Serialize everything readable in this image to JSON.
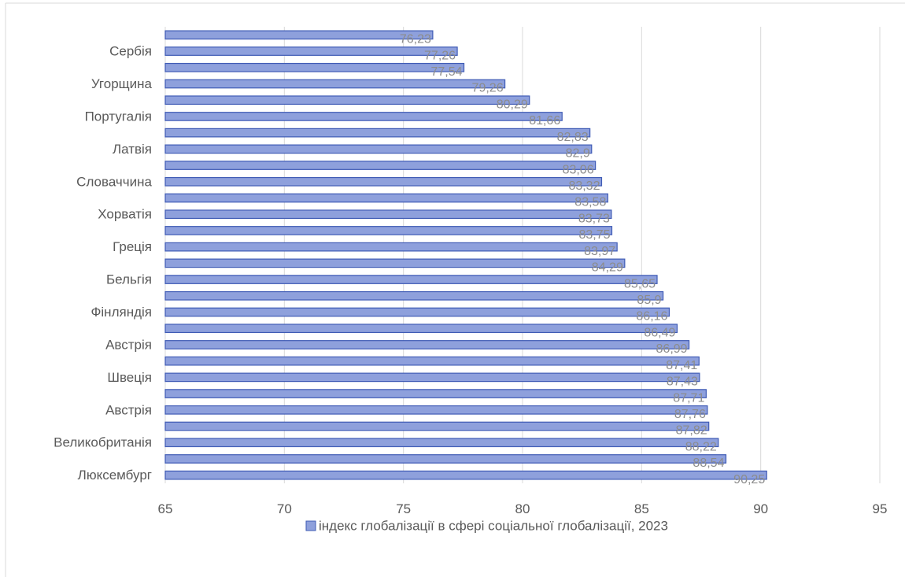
{
  "chart_data": {
    "type": "bar",
    "orientation": "horizontal",
    "categories": [
      "",
      "Сербія",
      "",
      "Угорщина",
      "",
      "Португалія",
      "",
      "Латвія",
      "",
      "Словаччина",
      "",
      "Хорватія",
      "",
      "Греція",
      "",
      "Бельгія",
      "",
      "Фінляндія",
      "",
      "Австрія",
      "",
      "Швеція",
      "",
      "Австрія",
      "",
      "Великобританія",
      "",
      "Люксембург"
    ],
    "series": [
      {
        "name": "індекс глобалізації в сфері соціальної глобалізації, 2023",
        "values": [
          76.23,
          77.26,
          77.54,
          79.26,
          80.29,
          81.66,
          82.83,
          82.9,
          83.06,
          83.32,
          83.58,
          83.73,
          83.75,
          83.97,
          84.29,
          85.65,
          85.9,
          86.16,
          86.49,
          86.99,
          87.41,
          87.43,
          87.71,
          87.76,
          87.82,
          88.22,
          88.54,
          90.25
        ],
        "labels": [
          "76,23",
          "77,26",
          "77,54",
          "79,26",
          "80,29",
          "81,66",
          "82,83",
          "82,9",
          "83,06",
          "83,32",
          "83,58",
          "83,73",
          "83,75",
          "83,97",
          "84,29",
          "85,65",
          "85,9",
          "86,16",
          "86,49",
          "86,99",
          "87,41",
          "87,43",
          "87,71",
          "87,76",
          "87,82",
          "88,22",
          "88,54",
          "90,25"
        ]
      }
    ],
    "xlim": [
      65,
      95
    ],
    "xticks": [
      "65",
      "70",
      "75",
      "80",
      "85",
      "90",
      "95"
    ],
    "grid": true,
    "legend_position": "bottom",
    "colors": {
      "bar_fill": "#8ea0dc",
      "bar_stroke": "#3f5bb5",
      "grid": "#d9d9d9",
      "text": "#595959"
    }
  }
}
